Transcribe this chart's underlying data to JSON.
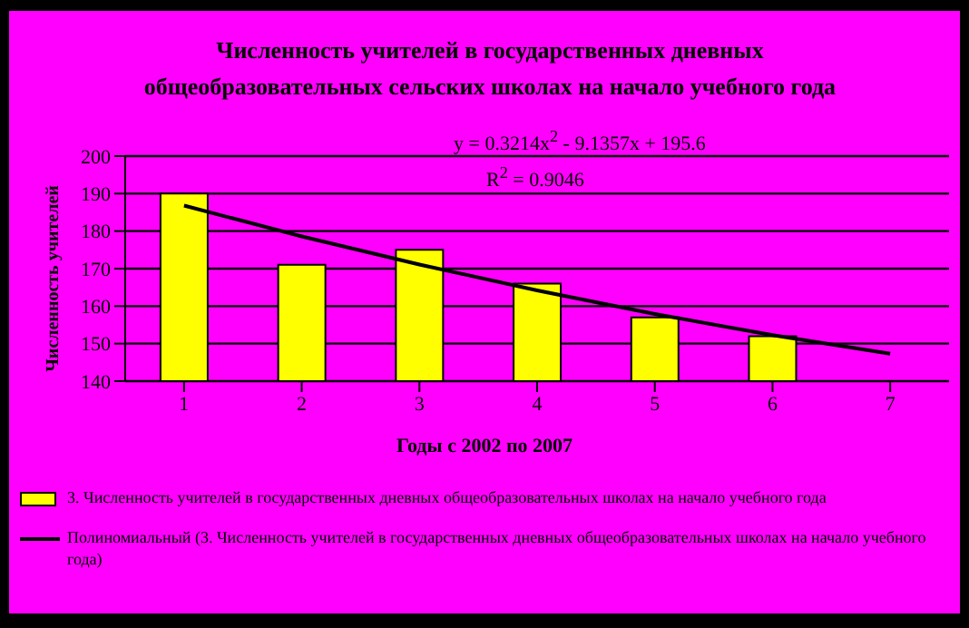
{
  "chart_data": {
    "type": "bar",
    "title": "Численность учителей в государственных дневных общеобразовательных сельских школах на начало учебного года",
    "xlabel": "Годы с 2002 по 2007",
    "ylabel": "Численность учителей",
    "categories": [
      "1",
      "2",
      "3",
      "4",
      "5",
      "6",
      "7"
    ],
    "series": [
      {
        "name": "3. Численность учителей в государственных дневных общеобразовательных школах на начало учебного года",
        "color": "#ffff00",
        "values": [
          190,
          171,
          175,
          166,
          157,
          152,
          null
        ]
      },
      {
        "type": "line",
        "name": "Полиномиальный (3. Численность учителей в государственных дневных общеобразовательных школах на начало учебного года)",
        "color": "#000000",
        "values": [
          186.8,
          178.6,
          171.1,
          164.2,
          157.9,
          152.3,
          147.3
        ]
      }
    ],
    "ylim": [
      140,
      200
    ],
    "yticks": [
      140,
      150,
      160,
      170,
      180,
      190,
      200
    ],
    "grid": "y",
    "legend": "bottom",
    "marker": "none",
    "line_style": "solid",
    "annotations": [
      "y = 0.3214x$^{2}$ - 9.1357x + 195.6",
      "R$^{2}$ = 0.9046"
    ]
  }
}
